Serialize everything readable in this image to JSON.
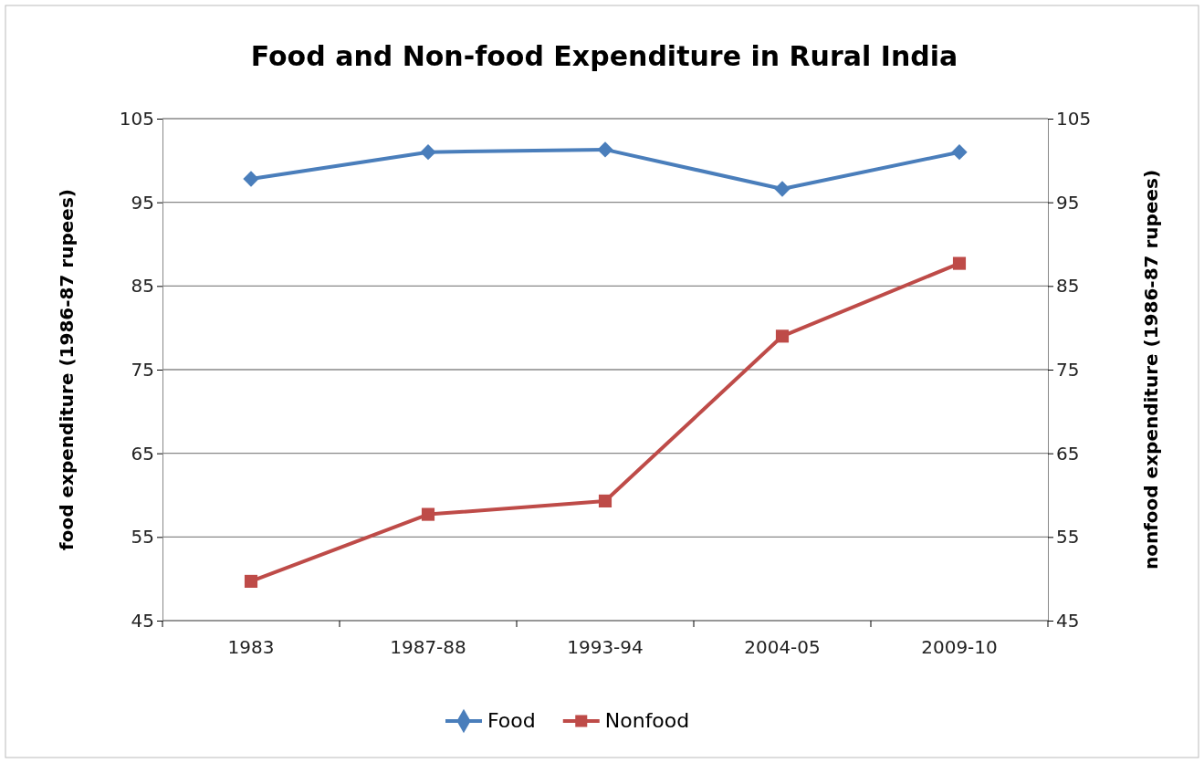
{
  "chart_data": {
    "type": "line",
    "title": "Food and Non-food Expenditure in Rural India",
    "ylabel": "food expenditure (1986-87 rupees)",
    "y2label": "nonfood expenditure (1986-87 rupees)",
    "categories": [
      "1983",
      "1987-88",
      "1993-94",
      "2004-05",
      "2009-10"
    ],
    "series": [
      {
        "name": "Food",
        "color": "#4a7ebb",
        "marker": "diamond",
        "values": [
          97.8,
          101.0,
          101.3,
          96.6,
          101.0
        ]
      },
      {
        "name": "Nonfood",
        "color": "#be4b48",
        "marker": "square",
        "values": [
          49.7,
          57.7,
          59.3,
          79.0,
          87.7
        ]
      }
    ],
    "ylim": [
      45,
      105
    ],
    "yticks": [
      45,
      55,
      65,
      75,
      85,
      95,
      105
    ],
    "y2lim": [
      45,
      105
    ],
    "y2ticks": [
      45,
      55,
      65,
      75,
      85,
      95,
      105
    ],
    "grid": "y",
    "legend": "bottom"
  }
}
